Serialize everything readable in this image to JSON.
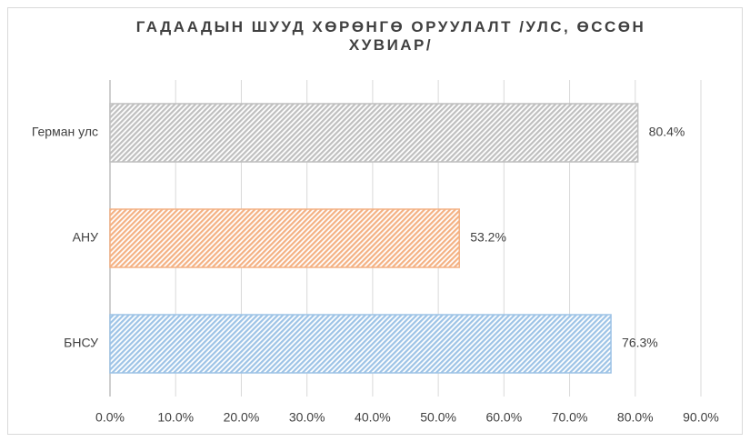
{
  "chart_data": {
    "type": "hbar",
    "title": "ГАДААДЫН ШУУД ХӨРӨНГӨ ОРУУЛАЛТ /УЛС, ӨССӨН ХУВИАР/",
    "categories": [
      "Герман улс",
      "АНУ",
      "БНСУ"
    ],
    "values": [
      80.4,
      53.2,
      76.3
    ],
    "value_labels": [
      "80.4%",
      "53.2%",
      "76.3%"
    ],
    "colors": [
      "#bfbfbf",
      "#f4b183",
      "#9dc3e6"
    ],
    "xlim": [
      0,
      90
    ],
    "xticks": [
      {
        "value": 0,
        "label": "0.0%"
      },
      {
        "value": 10,
        "label": "10.0%"
      },
      {
        "value": 20,
        "label": "20.0%"
      },
      {
        "value": 30,
        "label": "30.0%"
      },
      {
        "value": 40,
        "label": "40.0%"
      },
      {
        "value": 50,
        "label": "50.0%"
      },
      {
        "value": 60,
        "label": "60.0%"
      },
      {
        "value": 70,
        "label": "70.0%"
      },
      {
        "value": 80,
        "label": "80.0%"
      },
      {
        "value": 90,
        "label": "90.0%"
      }
    ],
    "grid": true
  }
}
